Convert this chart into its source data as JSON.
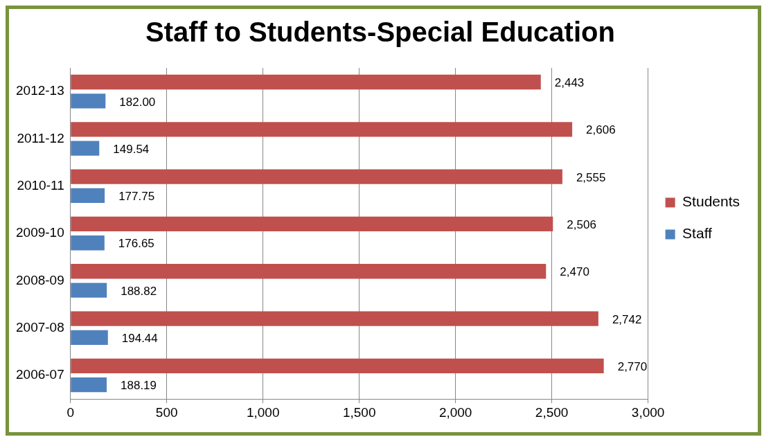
{
  "chart_data": {
    "type": "bar",
    "title": "Staff to Students-Special Education",
    "orientation": "horizontal",
    "categories": [
      "2012-13",
      "2011-12",
      "2010-11",
      "2009-10",
      "2008-09",
      "2007-08",
      "2006-07"
    ],
    "series": [
      {
        "name": "Students",
        "color": "#c0504d",
        "values": [
          2443,
          2606,
          2555,
          2506,
          2470,
          2742,
          2770
        ],
        "value_labels": [
          "2,443",
          "2,606",
          "2,555",
          "2,506",
          "2,470",
          "2,742",
          "2,770"
        ]
      },
      {
        "name": "Staff",
        "color": "#4f81bd",
        "values": [
          182.0,
          149.54,
          177.75,
          176.65,
          188.82,
          194.44,
          188.19
        ],
        "value_labels": [
          "182.00",
          "149.54",
          "177.75",
          "176.65",
          "188.82",
          "194.44",
          "188.19"
        ]
      }
    ],
    "xlim": [
      0,
      3000
    ],
    "xticks": [
      0,
      500,
      {
        "value": 1000,
        "label": "1,000"
      },
      {
        "value": 1500,
        "label": "1,500"
      },
      {
        "value": 2000,
        "label": "2,000"
      },
      {
        "value": 2500,
        "label": "2,500"
      },
      {
        "value": 3000,
        "label": "3,000"
      }
    ],
    "grid": "x",
    "legend": "right"
  }
}
